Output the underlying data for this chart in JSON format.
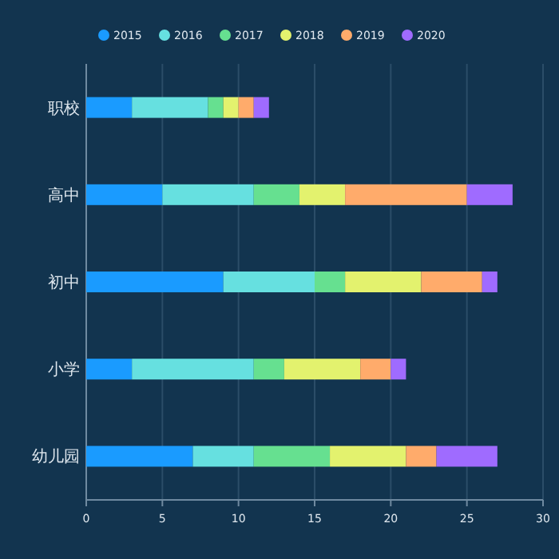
{
  "chart_data": {
    "type": "bar",
    "orientation": "horizontal",
    "stacked": true,
    "categories": [
      "职校",
      "高中",
      "初中",
      "小学",
      "幼儿园"
    ],
    "series": [
      {
        "name": "2015",
        "color": "#1a9bff",
        "values": [
          3,
          5,
          9,
          3,
          7
        ]
      },
      {
        "name": "2016",
        "color": "#66e0e0",
        "values": [
          5,
          6,
          6,
          8,
          4
        ]
      },
      {
        "name": "2017",
        "color": "#66e090",
        "values": [
          1,
          3,
          2,
          2,
          5
        ]
      },
      {
        "name": "2018",
        "color": "#e3f26e",
        "values": [
          1,
          3,
          5,
          5,
          5
        ]
      },
      {
        "name": "2019",
        "color": "#ffab6b",
        "values": [
          1,
          8,
          4,
          2,
          2
        ]
      },
      {
        "name": "2020",
        "color": "#9f6bff",
        "values": [
          1,
          3,
          1,
          1,
          4
        ]
      }
    ],
    "xlim": [
      0,
      30
    ],
    "xticks": [
      0,
      5,
      10,
      15,
      20,
      25,
      30
    ],
    "grid": "x",
    "legend": "top"
  }
}
